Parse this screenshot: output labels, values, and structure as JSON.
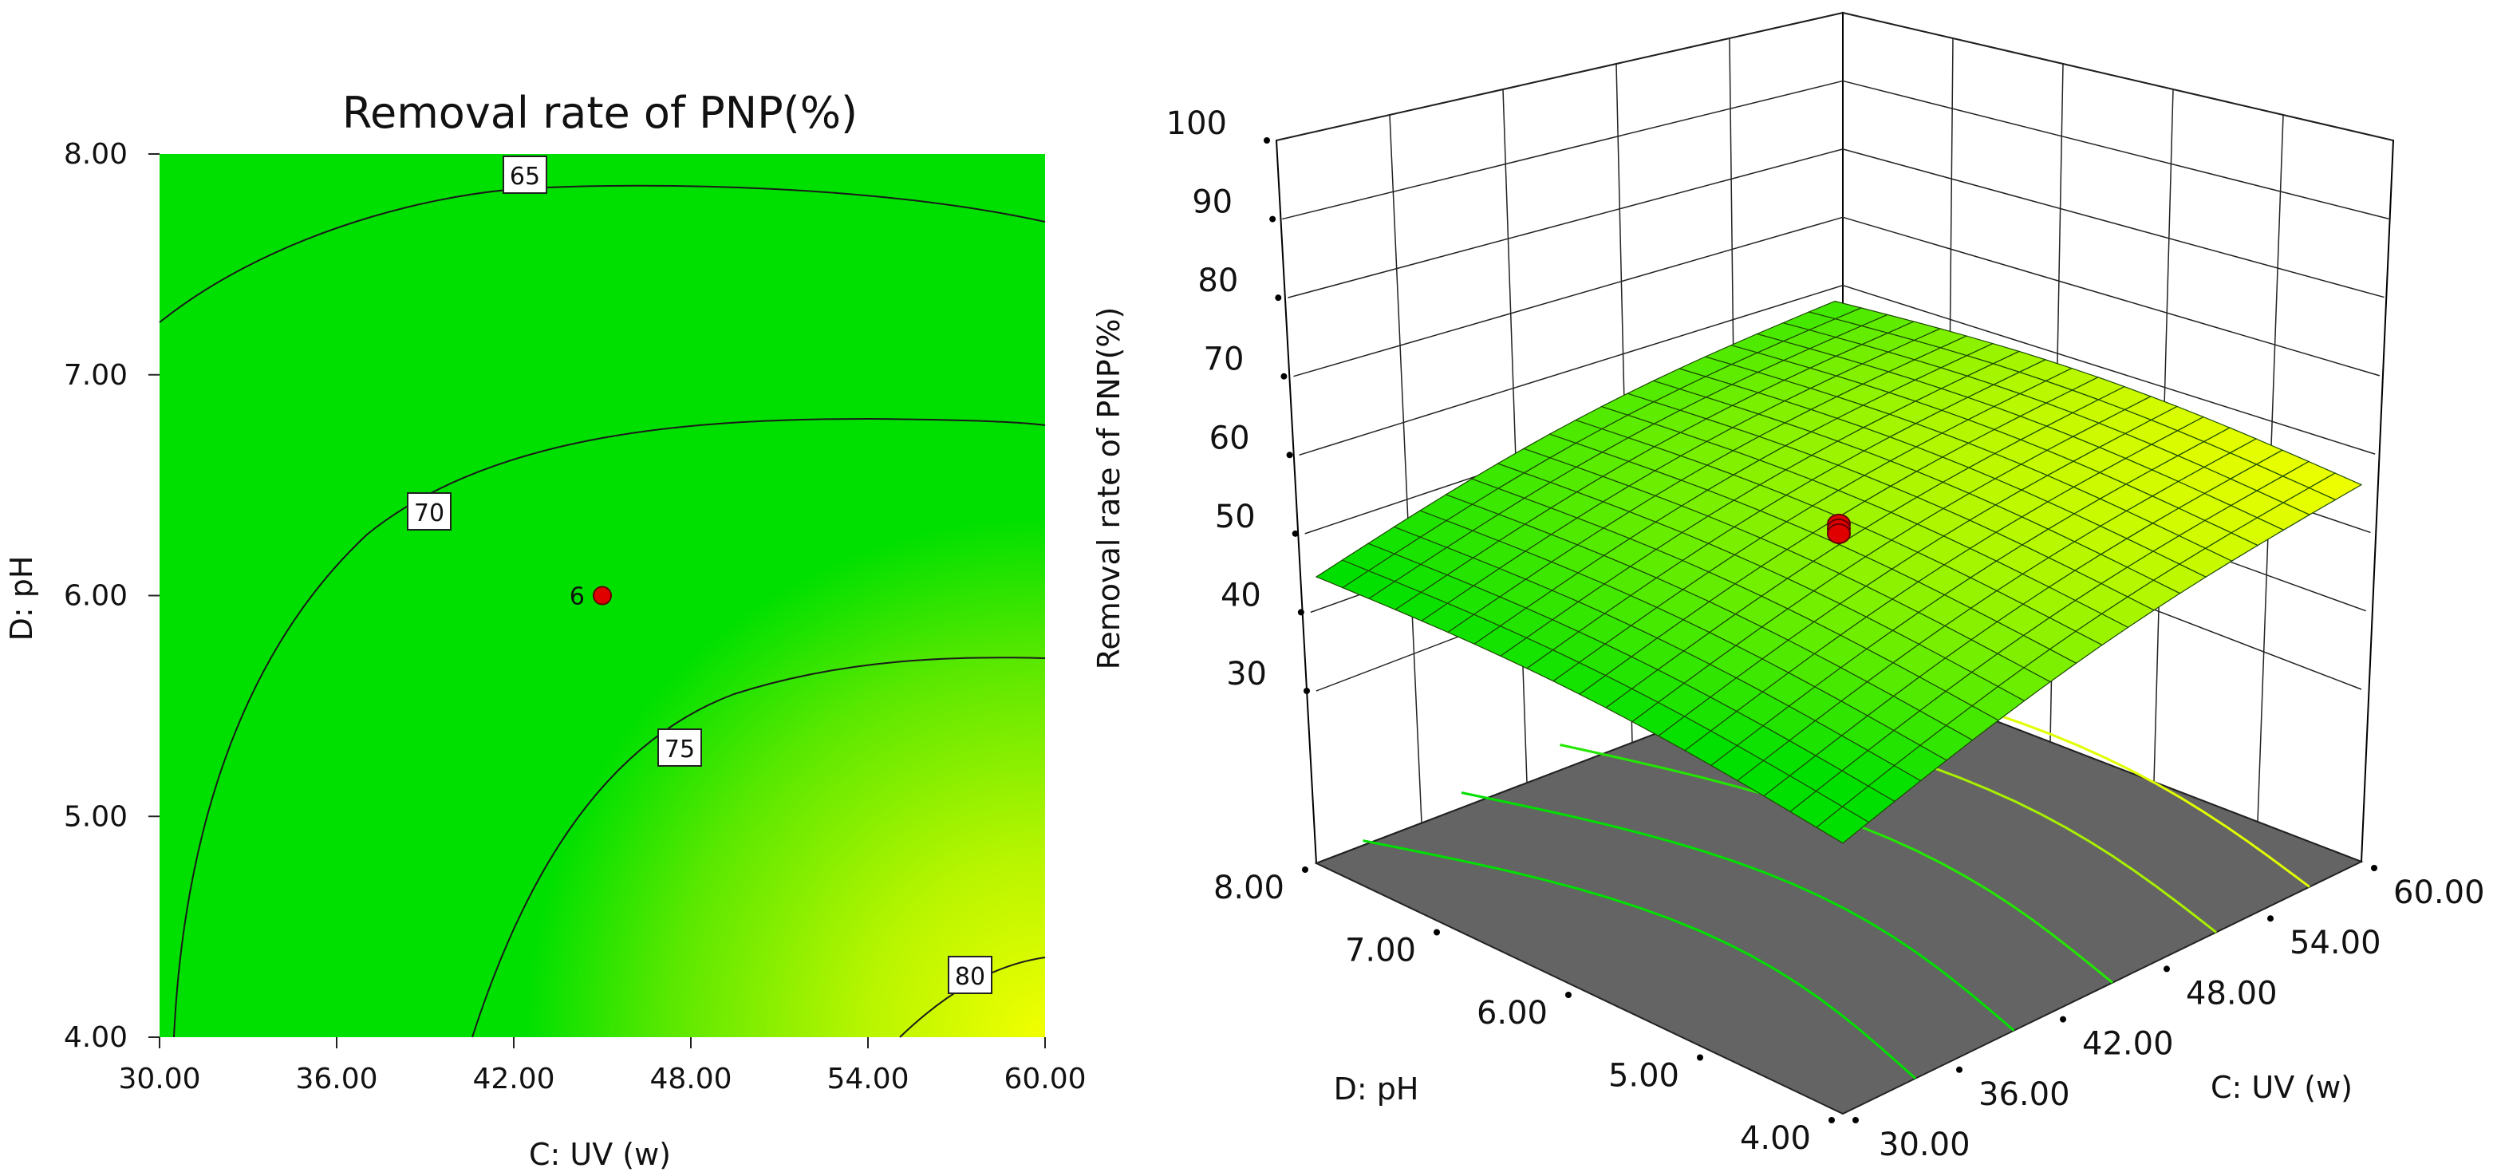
{
  "chart_data": [
    {
      "type": "contour",
      "title": "Removal rate of PNP(%)",
      "xlabel": "C: UV (w)",
      "ylabel": "D: pH",
      "xlim": [
        30,
        60
      ],
      "ylim": [
        4,
        8
      ],
      "x_ticks": [
        "30.00",
        "36.00",
        "42.00",
        "48.00",
        "54.00",
        "60.00"
      ],
      "y_ticks": [
        "4.00",
        "5.00",
        "6.00",
        "7.00",
        "8.00"
      ],
      "contour_levels": [
        {
          "level": 65,
          "label": "65"
        },
        {
          "level": 70,
          "label": "70"
        },
        {
          "level": 75,
          "label": "75"
        },
        {
          "level": 80,
          "label": "80"
        }
      ],
      "design_point": {
        "x": 45,
        "y": 6,
        "label": "6"
      },
      "colors": {
        "low": "#00e600",
        "high": "#f2ff00",
        "point": "#e00000"
      }
    },
    {
      "type": "surface3d",
      "zlabel": "Removal rate of PNP(%)",
      "xlabel": "C: UV (w)",
      "ylabel": "D: pH",
      "xlim": [
        30,
        60
      ],
      "ylim": [
        4,
        8
      ],
      "zlim": [
        30,
        100
      ],
      "x_ticks": [
        "30.00",
        "36.00",
        "42.00",
        "48.00",
        "54.00",
        "60.00"
      ],
      "y_ticks": [
        "4.00",
        "5.00",
        "6.00",
        "7.00",
        "8.00"
      ],
      "z_ticks": [
        "30",
        "40",
        "50",
        "60",
        "70",
        "80",
        "90",
        "100"
      ],
      "corner_values": {
        "uv30_ph8": 59,
        "uv30_ph4": 55,
        "uv60_ph4": 82,
        "uv60_ph8": 65
      },
      "design_point": {
        "x": 45,
        "y": 6,
        "z": 71
      },
      "floor_color": "#646464"
    }
  ]
}
